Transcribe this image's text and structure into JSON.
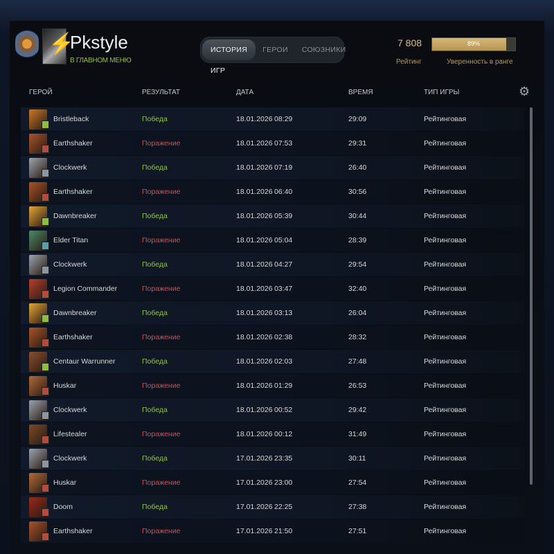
{
  "profile": {
    "name": "Pkstyle",
    "status": "В ГЛАВНОМ МЕНЮ"
  },
  "tabs": [
    {
      "label": "ИСТОРИЯ ИГР",
      "active": true
    },
    {
      "label": "ГЕРОИ"
    },
    {
      "label": "СОЮЗНИКИ"
    }
  ],
  "rating": {
    "value": "7 808",
    "label": "Рейтинг"
  },
  "confidence": {
    "value": "89%",
    "percent": 89,
    "label": "Уверенность в ранге"
  },
  "columns": {
    "hero": "ГЕРОЙ",
    "result": "РЕЗУЛЬТАТ",
    "date": "ДАТА",
    "duration": "ВРЕМЯ",
    "type": "ТИП ИГРЫ"
  },
  "colors": {
    "win": "#8dc63f",
    "loss": "#e04848",
    "accent": "#d6b878"
  },
  "matches": [
    {
      "hero": "Bristleback",
      "result": "Победа",
      "win": true,
      "date": "18.01.2026",
      "time": "08:29",
      "duration": "29:09",
      "type": "Рейтинговая"
    },
    {
      "hero": "Earthshaker",
      "result": "Поражение",
      "win": false,
      "date": "18.01.2026",
      "time": "07:53",
      "duration": "29:31",
      "type": "Рейтинговая"
    },
    {
      "hero": "Clockwerk",
      "result": "Победа",
      "win": true,
      "date": "18.01.2026",
      "time": "07:19",
      "duration": "26:40",
      "type": "Рейтинговая"
    },
    {
      "hero": "Earthshaker",
      "result": "Поражение",
      "win": false,
      "date": "18.01.2026",
      "time": "06:40",
      "duration": "30:56",
      "type": "Рейтинговая"
    },
    {
      "hero": "Dawnbreaker",
      "result": "Победа",
      "win": true,
      "date": "18.01.2026",
      "time": "05:39",
      "duration": "30:44",
      "type": "Рейтинговая"
    },
    {
      "hero": "Elder Titan",
      "result": "Поражение",
      "win": false,
      "date": "18.01.2026",
      "time": "05:04",
      "duration": "28:39",
      "type": "Рейтинговая"
    },
    {
      "hero": "Clockwerk",
      "result": "Победа",
      "win": true,
      "date": "18.01.2026",
      "time": "04:27",
      "duration": "29:54",
      "type": "Рейтинговая"
    },
    {
      "hero": "Legion Commander",
      "result": "Поражение",
      "win": false,
      "date": "18.01.2026",
      "time": "03:47",
      "duration": "32:40",
      "type": "Рейтинговая"
    },
    {
      "hero": "Dawnbreaker",
      "result": "Победа",
      "win": true,
      "date": "18.01.2026",
      "time": "03:13",
      "duration": "26:04",
      "type": "Рейтинговая"
    },
    {
      "hero": "Earthshaker",
      "result": "Поражение",
      "win": false,
      "date": "18.01.2026",
      "time": "02:38",
      "duration": "28:32",
      "type": "Рейтинговая"
    },
    {
      "hero": "Centaur Warrunner",
      "result": "Победа",
      "win": true,
      "date": "18.01.2026",
      "time": "02:03",
      "duration": "27:48",
      "type": "Рейтинговая"
    },
    {
      "hero": "Huskar",
      "result": "Поражение",
      "win": false,
      "date": "18.01.2026",
      "time": "01:29",
      "duration": "26:53",
      "type": "Рейтинговая"
    },
    {
      "hero": "Clockwerk",
      "result": "Победа",
      "win": true,
      "date": "18.01.2026",
      "time": "00:52",
      "duration": "29:42",
      "type": "Рейтинговая"
    },
    {
      "hero": "Lifestealer",
      "result": "Поражение",
      "win": false,
      "date": "18.01.2026",
      "time": "00:12",
      "duration": "31:49",
      "type": "Рейтинговая"
    },
    {
      "hero": "Clockwerk",
      "result": "Победа",
      "win": true,
      "date": "17.01.2026",
      "time": "23:35",
      "duration": "30:11",
      "type": "Рейтинговая"
    },
    {
      "hero": "Huskar",
      "result": "Поражение",
      "win": false,
      "date": "17.01.2026",
      "time": "23:00",
      "duration": "27:54",
      "type": "Рейтинговая"
    },
    {
      "hero": "Doom",
      "result": "Победа",
      "win": true,
      "date": "17.01.2026",
      "time": "22:25",
      "duration": "27:38",
      "type": "Рейтинговая"
    },
    {
      "hero": "Earthshaker",
      "result": "Поражение",
      "win": false,
      "date": "17.01.2026",
      "time": "21:50",
      "duration": "27:51",
      "type": "Рейтинговая"
    }
  ]
}
